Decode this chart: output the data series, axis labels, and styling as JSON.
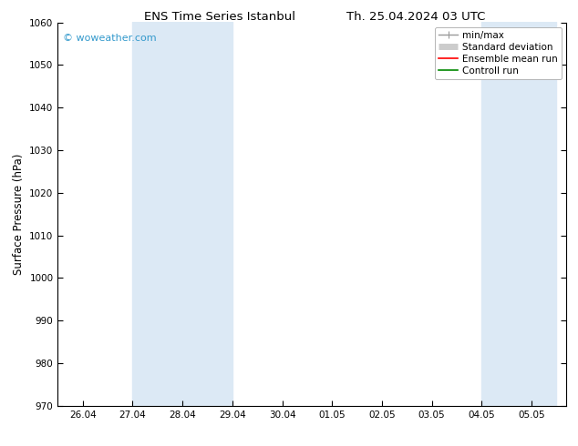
{
  "title_left": "ENS Time Series Istanbul",
  "title_right": "Th. 25.04.2024 03 UTC",
  "ylabel": "Surface Pressure (hPa)",
  "ylim": [
    970,
    1060
  ],
  "yticks": [
    970,
    980,
    990,
    1000,
    1010,
    1020,
    1030,
    1040,
    1050,
    1060
  ],
  "xtick_labels": [
    "26.04",
    "27.04",
    "28.04",
    "29.04",
    "30.04",
    "01.05",
    "02.05",
    "03.05",
    "04.05",
    "05.05"
  ],
  "x_positions": [
    0,
    1,
    2,
    3,
    4,
    5,
    6,
    7,
    8,
    9
  ],
  "xlim": [
    -0.5,
    9.7
  ],
  "background_color": "#ffffff",
  "plot_bg_color": "#ffffff",
  "shaded_regions": [
    {
      "x_start": 1.0,
      "x_end": 3.0,
      "color": "#dce9f5"
    },
    {
      "x_start": 8.0,
      "x_end": 9.5,
      "color": "#dce9f5"
    }
  ],
  "watermark": "© woweather.com",
  "watermark_color": "#3399cc",
  "legend_items": [
    {
      "label": "min/max",
      "color": "#999999",
      "lw": 1.0
    },
    {
      "label": "Standard deviation",
      "color": "#cccccc",
      "lw": 5
    },
    {
      "label": "Ensemble mean run",
      "color": "#ff0000",
      "lw": 1.2
    },
    {
      "label": "Controll run",
      "color": "#008800",
      "lw": 1.2
    }
  ],
  "title_fontsize": 9.5,
  "ylabel_fontsize": 8.5,
  "tick_fontsize": 7.5,
  "watermark_fontsize": 8,
  "legend_fontsize": 7.5,
  "font_family": "DejaVu Sans"
}
